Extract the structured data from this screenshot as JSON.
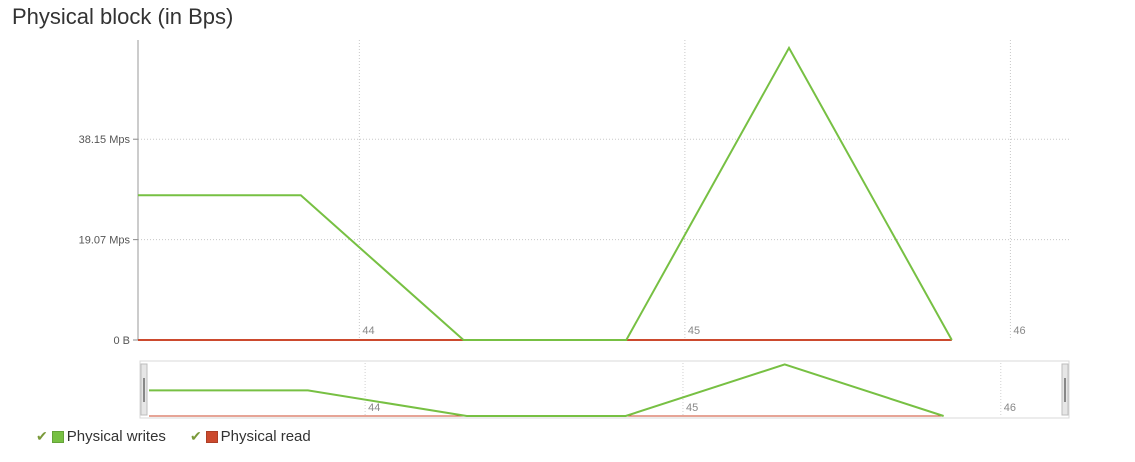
{
  "chart_data": {
    "type": "line",
    "title": "Physical block (in Bps)",
    "x": [
      43.32,
      43.82,
      44.32,
      44.82,
      45.32,
      45.82
    ],
    "xticks": [
      {
        "value": 44,
        "label": "44"
      },
      {
        "value": 45,
        "label": "45"
      },
      {
        "value": 46,
        "label": "46"
      }
    ],
    "xlim": [
      43.32,
      46.18
    ],
    "ylim": [
      0,
      57
    ],
    "yticks": [
      {
        "value": 0,
        "label": "0 B"
      },
      {
        "value": 19.07,
        "label": "19.07 Mps"
      },
      {
        "value": 38.15,
        "label": "38.15 Mps"
      }
    ],
    "series": [
      {
        "name": "Physical writes",
        "color": "#77c043",
        "values": [
          27.5,
          27.5,
          0,
          0,
          55.5,
          0
        ]
      },
      {
        "name": "Physical read",
        "color": "#cc4a2e",
        "values": [
          0,
          0,
          0,
          0,
          0,
          0
        ]
      }
    ],
    "grid": true,
    "legend_position": "bottom-left"
  },
  "legend": {
    "items": [
      {
        "label": "Physical writes",
        "check": "✔",
        "color": "#77c043"
      },
      {
        "label": "Physical read",
        "check": "✔",
        "color": "#cc4a2e"
      }
    ]
  }
}
